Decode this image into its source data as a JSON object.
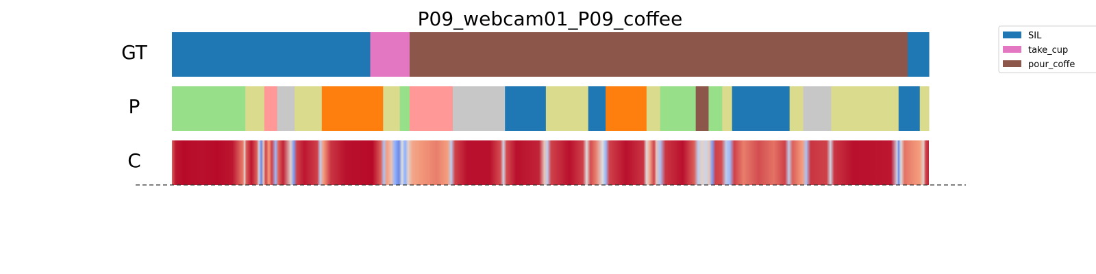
{
  "chart_data": {
    "type": "segmentation",
    "title": "P09_webcam01_P09_coffee",
    "x_range": [
      0,
      100
    ],
    "rows": [
      {
        "label": "GT",
        "segments": [
          {
            "start": 0.0,
            "end": 26.2,
            "label": "SIL"
          },
          {
            "start": 26.2,
            "end": 31.4,
            "label": "take_cup"
          },
          {
            "start": 31.4,
            "end": 97.2,
            "label": "pour_coffe"
          },
          {
            "start": 97.2,
            "end": 100.0,
            "label": "SIL"
          }
        ]
      },
      {
        "label": "P",
        "segments": [
          {
            "start": 0.0,
            "end": 9.7,
            "color": "#98df8a"
          },
          {
            "start": 9.7,
            "end": 12.2,
            "color": "#dbdb8d"
          },
          {
            "start": 12.2,
            "end": 13.9,
            "color": "#ff9896"
          },
          {
            "start": 13.9,
            "end": 16.2,
            "color": "#c7c7c7"
          },
          {
            "start": 16.2,
            "end": 19.8,
            "color": "#dbdb8d"
          },
          {
            "start": 19.8,
            "end": 27.9,
            "color": "#ff7f0e"
          },
          {
            "start": 27.9,
            "end": 30.1,
            "color": "#dbdb8d"
          },
          {
            "start": 30.1,
            "end": 31.4,
            "color": "#98df8a"
          },
          {
            "start": 31.4,
            "end": 37.1,
            "color": "#ff9896"
          },
          {
            "start": 37.1,
            "end": 44.0,
            "color": "#c7c7c7"
          },
          {
            "start": 44.0,
            "end": 49.4,
            "color": "#1f77b4"
          },
          {
            "start": 49.4,
            "end": 55.0,
            "color": "#dbdb8d"
          },
          {
            "start": 55.0,
            "end": 57.3,
            "color": "#1f77b4"
          },
          {
            "start": 57.3,
            "end": 62.7,
            "color": "#ff7f0e"
          },
          {
            "start": 62.7,
            "end": 64.5,
            "color": "#dbdb8d"
          },
          {
            "start": 64.5,
            "end": 69.2,
            "color": "#98df8a"
          },
          {
            "start": 69.2,
            "end": 70.9,
            "color": "#8c564b"
          },
          {
            "start": 70.9,
            "end": 72.7,
            "color": "#98df8a"
          },
          {
            "start": 72.7,
            "end": 74.0,
            "color": "#dbdb8d"
          },
          {
            "start": 74.0,
            "end": 81.6,
            "color": "#1f77b4"
          },
          {
            "start": 81.6,
            "end": 83.4,
            "color": "#dbdb8d"
          },
          {
            "start": 83.4,
            "end": 87.1,
            "color": "#c7c7c7"
          },
          {
            "start": 87.1,
            "end": 96.0,
            "color": "#dbdb8d"
          },
          {
            "start": 96.0,
            "end": 98.8,
            "color": "#1f77b4"
          },
          {
            "start": 98.8,
            "end": 100.0,
            "color": "#dbdb8d"
          }
        ]
      },
      {
        "label": "C",
        "colormap": "coolwarm",
        "value_range": [
          0,
          1
        ],
        "confidence": [
          [
            0.0,
            0.85
          ],
          [
            0.5,
            0.97
          ],
          [
            1.5,
            0.99
          ],
          [
            4.0,
            0.98
          ],
          [
            6.0,
            0.99
          ],
          [
            8.0,
            0.97
          ],
          [
            9.4,
            0.8
          ],
          [
            9.6,
            0.5
          ],
          [
            9.8,
            0.85
          ],
          [
            10.5,
            0.97
          ],
          [
            11.2,
            0.85
          ],
          [
            11.5,
            0.45
          ],
          [
            11.8,
            0.15
          ],
          [
            12.1,
            0.6
          ],
          [
            12.4,
            0.9
          ],
          [
            12.8,
            0.75
          ],
          [
            13.2,
            0.9
          ],
          [
            13.7,
            0.3
          ],
          [
            14.1,
            0.85
          ],
          [
            14.7,
            0.95
          ],
          [
            15.7,
            0.55
          ],
          [
            16.1,
            0.2
          ],
          [
            16.5,
            0.9
          ],
          [
            17.5,
            0.97
          ],
          [
            19.2,
            0.9
          ],
          [
            19.6,
            0.4
          ],
          [
            20.0,
            0.75
          ],
          [
            21.0,
            0.92
          ],
          [
            23.0,
            0.98
          ],
          [
            26.5,
            0.99
          ],
          [
            27.6,
            0.85
          ],
          [
            28.0,
            0.35
          ],
          [
            28.4,
            0.75
          ],
          [
            29.0,
            0.6
          ],
          [
            29.5,
            0.25
          ],
          [
            30.0,
            0.15
          ],
          [
            30.4,
            0.5
          ],
          [
            30.8,
            0.25
          ],
          [
            31.2,
            0.55
          ],
          [
            31.8,
            0.72
          ],
          [
            33.0,
            0.76
          ],
          [
            35.0,
            0.8
          ],
          [
            36.4,
            0.75
          ],
          [
            36.9,
            0.4
          ],
          [
            37.4,
            0.9
          ],
          [
            39.0,
            0.98
          ],
          [
            42.0,
            0.98
          ],
          [
            43.4,
            0.88
          ],
          [
            43.8,
            0.45
          ],
          [
            44.2,
            0.88
          ],
          [
            45.5,
            0.98
          ],
          [
            48.5,
            0.95
          ],
          [
            49.2,
            0.6
          ],
          [
            49.6,
            0.4
          ],
          [
            50.1,
            0.9
          ],
          [
            52.5,
            0.98
          ],
          [
            54.3,
            0.9
          ],
          [
            54.8,
            0.5
          ],
          [
            55.3,
            0.88
          ],
          [
            56.0,
            0.8
          ],
          [
            56.9,
            0.5
          ],
          [
            57.3,
            0.3
          ],
          [
            57.8,
            0.9
          ],
          [
            60.0,
            0.98
          ],
          [
            62.3,
            0.92
          ],
          [
            62.7,
            0.5
          ],
          [
            63.1,
            0.7
          ],
          [
            63.7,
            0.9
          ],
          [
            64.0,
            0.6
          ],
          [
            64.5,
            0.35
          ],
          [
            65.2,
            0.92
          ],
          [
            67.5,
            0.98
          ],
          [
            69.0,
            0.85
          ],
          [
            69.5,
            0.4
          ],
          [
            70.0,
            0.55
          ],
          [
            70.6,
            0.45
          ],
          [
            71.0,
            0.6
          ],
          [
            71.4,
            0.2
          ],
          [
            71.8,
            0.9
          ],
          [
            72.6,
            0.88
          ],
          [
            73.2,
            0.4
          ],
          [
            73.7,
            0.3
          ],
          [
            74.3,
            0.9
          ],
          [
            75.5,
            0.8
          ],
          [
            77.5,
            0.88
          ],
          [
            79.5,
            0.82
          ],
          [
            81.0,
            0.9
          ],
          [
            81.5,
            0.4
          ],
          [
            82.0,
            0.85
          ],
          [
            83.3,
            0.75
          ],
          [
            83.8,
            0.35
          ],
          [
            84.4,
            0.92
          ],
          [
            86.5,
            0.9
          ],
          [
            87.0,
            0.45
          ],
          [
            87.5,
            0.92
          ],
          [
            90.0,
            0.98
          ],
          [
            95.0,
            0.97
          ],
          [
            95.8,
            0.45
          ],
          [
            96.0,
            0.15
          ],
          [
            96.3,
            0.5
          ],
          [
            96.8,
            0.82
          ],
          [
            97.8,
            0.78
          ],
          [
            98.8,
            0.75
          ],
          [
            99.3,
            0.55
          ],
          [
            99.6,
            0.9
          ],
          [
            100.0,
            0.95
          ]
        ]
      }
    ],
    "legend": {
      "placement": "top-right",
      "entries": [
        {
          "label": "SIL",
          "color": "#1f77b4"
        },
        {
          "label": "take_cup",
          "color": "#e377c2"
        },
        {
          "label": "pour_coffe",
          "color": "#8c564b"
        }
      ]
    },
    "baseline": {
      "style": "dashed",
      "color": "#333333"
    }
  }
}
